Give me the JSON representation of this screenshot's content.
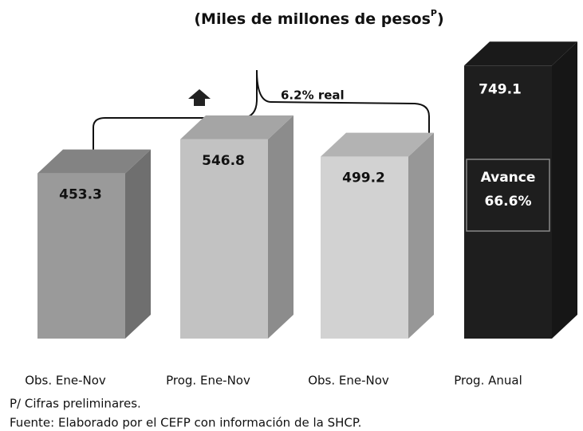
{
  "chart_data": {
    "type": "bar3d",
    "title": "(Miles de millones de pesos",
    "title_superscript": "P",
    "title_close": ")",
    "categories": [
      "Obs. Ene-Nov",
      "Prog. Ene-Nov",
      "Obs. Ene-Nov",
      "Prog. Anual"
    ],
    "values": [
      453.3,
      546.8,
      499.2,
      749.1
    ],
    "colors": [
      "#9a9a9a",
      "#c2c2c2",
      "#d2d2d2",
      "#1e1e1e"
    ],
    "ylim": [
      0,
      800
    ],
    "annotation": "6.2% real",
    "progress_label": "Avance",
    "progress_value": "66.6%",
    "notes": [
      "P/ Cifras preliminares.",
      "Fuente: Elaborado por el CEFP con información de la SHCP."
    ]
  }
}
